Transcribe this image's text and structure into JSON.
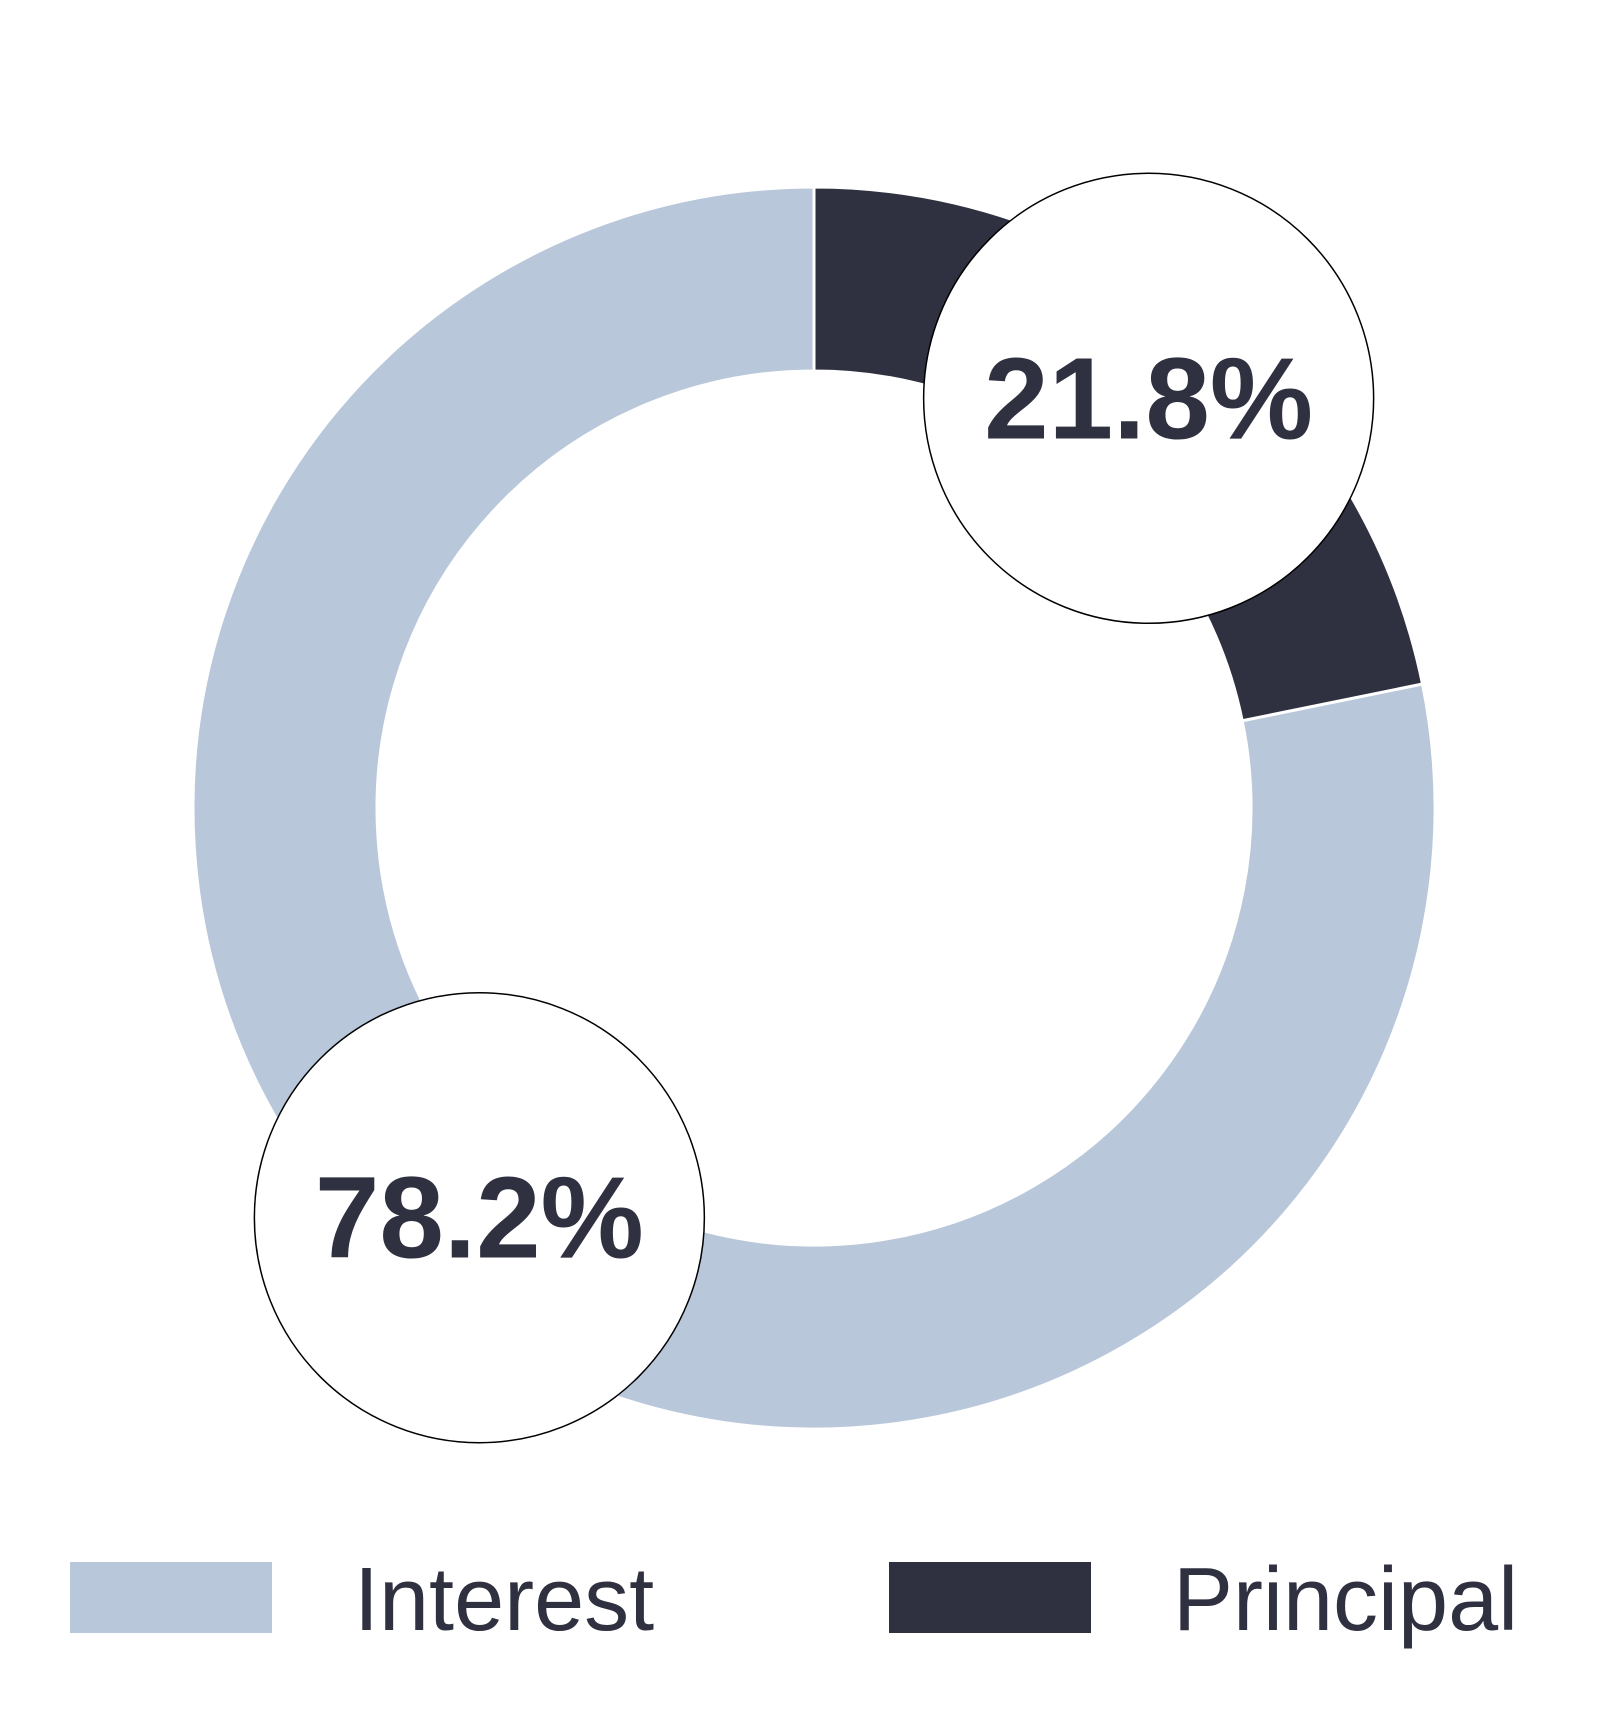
{
  "chart_data": {
    "type": "pie",
    "categories": [
      "Interest",
      "Principal"
    ],
    "values": [
      78.2,
      21.8
    ],
    "value_labels": [
      "78.2%",
      "21.8%"
    ],
    "colors": [
      "#b8c7da",
      "#2f3140"
    ],
    "legend": "bottom"
  }
}
